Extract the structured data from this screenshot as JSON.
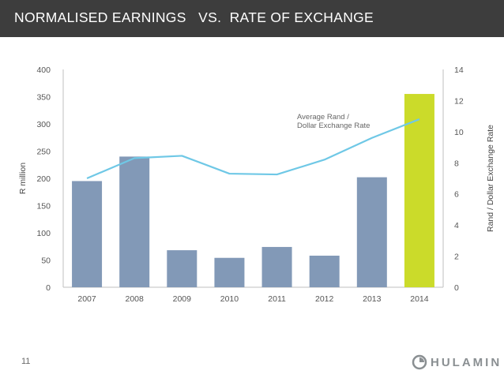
{
  "header": {
    "title": "NORMALISED EARNINGS   VS.  RATE OF EXCHANGE",
    "background": "#3d3d3d"
  },
  "page_number": "11",
  "logo": {
    "text": "HULAMIN",
    "icon": "hulamin-swirl-icon"
  },
  "chart_data": {
    "type": "bar",
    "categories": [
      "2007",
      "2008",
      "2009",
      "2010",
      "2011",
      "2012",
      "2013",
      "2014"
    ],
    "series": [
      {
        "type": "bar",
        "axis": "left",
        "values": [
          195,
          240,
          68,
          54,
          74,
          58,
          202,
          355
        ],
        "colors": [
          "#8299b7",
          "#8299b7",
          "#8299b7",
          "#8299b7",
          "#8299b7",
          "#8299b7",
          "#8299b7",
          "#cbdb2a"
        ]
      },
      {
        "name": "Average Rand / Dollar Exchange Rate",
        "label_lines": [
          "Average Rand /",
          "Dollar Exchange Rate"
        ],
        "type": "line",
        "axis": "right",
        "values": [
          7.0,
          8.3,
          8.45,
          7.3,
          7.25,
          8.2,
          9.6,
          10.8
        ],
        "color": "#6fc8e6"
      }
    ],
    "ylabel": "R million",
    "y2label": "Rand / Dollar Exchange Rate",
    "ylim": [
      0,
      400
    ],
    "y2lim": [
      0,
      14
    ],
    "yticks": [
      "0",
      "50",
      "100",
      "150",
      "200",
      "250",
      "300",
      "350",
      "400"
    ],
    "y2ticks": [
      "0",
      "2",
      "4",
      "6",
      "8",
      "10",
      "12",
      "14"
    ],
    "grid": false,
    "legend": "inline annotation near line"
  }
}
